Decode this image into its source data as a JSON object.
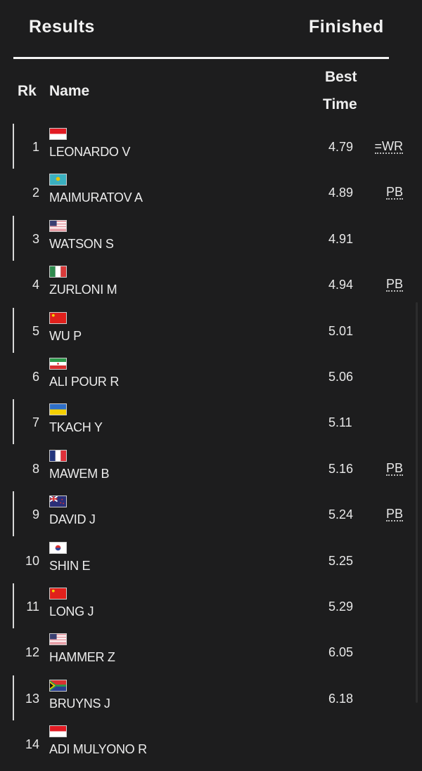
{
  "header": {
    "title": "Results",
    "status": "Finished"
  },
  "columns": {
    "rank": "Rk",
    "name": "Name",
    "best_line1": "Best",
    "best_line2": "Time"
  },
  "rows": [
    {
      "rank": "1",
      "flag": "INA",
      "name": "LEONARDO V",
      "time": "4.79",
      "record": "=WR"
    },
    {
      "rank": "2",
      "flag": "KAZ",
      "name": "MAIMURATOV A",
      "time": "4.89",
      "record": "PB"
    },
    {
      "rank": "3",
      "flag": "USA",
      "name": "WATSON S",
      "time": "4.91",
      "record": ""
    },
    {
      "rank": "4",
      "flag": "ITA",
      "name": "ZURLONI M",
      "time": "4.94",
      "record": "PB"
    },
    {
      "rank": "5",
      "flag": "CHN",
      "name": "WU P",
      "time": "5.01",
      "record": ""
    },
    {
      "rank": "6",
      "flag": "IRI",
      "name": "ALI POUR R",
      "time": "5.06",
      "record": ""
    },
    {
      "rank": "7",
      "flag": "UKR",
      "name": "TKACH Y",
      "time": "5.11",
      "record": ""
    },
    {
      "rank": "8",
      "flag": "FRA",
      "name": "MAWEM B",
      "time": "5.16",
      "record": "PB"
    },
    {
      "rank": "9",
      "flag": "NZL",
      "name": "DAVID J",
      "time": "5.24",
      "record": "PB"
    },
    {
      "rank": "10",
      "flag": "KOR",
      "name": "SHIN E",
      "time": "5.25",
      "record": ""
    },
    {
      "rank": "11",
      "flag": "CHN",
      "name": "LONG J",
      "time": "5.29",
      "record": ""
    },
    {
      "rank": "12",
      "flag": "USA",
      "name": "HAMMER Z",
      "time": "6.05",
      "record": ""
    },
    {
      "rank": "13",
      "flag": "RSA",
      "name": "BRUYNS J",
      "time": "6.18",
      "record": ""
    },
    {
      "rank": "14",
      "flag": "INA",
      "name": "ADI MULYONO R",
      "time": "",
      "record": ""
    }
  ]
}
